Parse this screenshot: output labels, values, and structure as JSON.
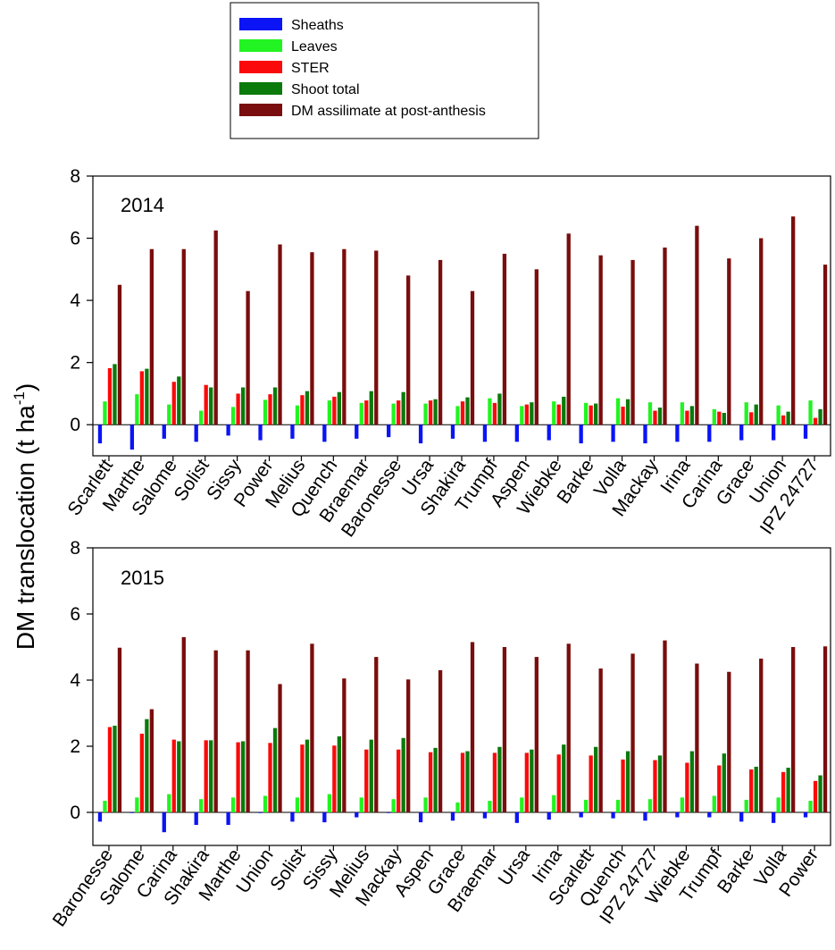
{
  "colors": {
    "sheaths": "#0a14f5",
    "leaves": "#22f322",
    "ster": "#fa0a0a",
    "shoot_total": "#0a7a0a",
    "dm_assimilate": "#7a0d0d"
  },
  "legend": {
    "placement": "top-center",
    "items": [
      {
        "key": "sheaths",
        "label": "Sheaths"
      },
      {
        "key": "leaves",
        "label": "Leaves"
      },
      {
        "key": "ster",
        "label": "STER"
      },
      {
        "key": "shoot_total",
        "label": "Shoot total"
      },
      {
        "key": "dm_assimilate",
        "label": "DM assilimate at post-anthesis"
      }
    ]
  },
  "ylabel_main": "DM translocation (t ha",
  "ylabel_sup": "-1",
  "ylabel_close": ")",
  "chart_data": [
    {
      "type": "bar",
      "title": "2014",
      "ylim": [
        -1,
        8
      ],
      "yticks": [
        0,
        2,
        4,
        6,
        8
      ],
      "series_names": [
        "Sheaths",
        "Leaves",
        "STER",
        "Shoot total",
        "DM assilimate at post-anthesis"
      ],
      "categories": [
        "Scarlett",
        "Marthe",
        "Salome",
        "Solist",
        "Sissy",
        "Power",
        "Melius",
        "Quench",
        "Braemar",
        "Baronesse",
        "Ursa",
        "Shakira",
        "Trumpf",
        "Aspen",
        "Wiebke",
        "Barke",
        "Volla",
        "Mackay",
        "Irina",
        "Carina",
        "Grace",
        "Union",
        "IPZ 24727"
      ],
      "series": [
        {
          "name": "Sheaths",
          "key": "sheaths",
          "values": [
            -0.6,
            -0.8,
            -0.45,
            -0.55,
            -0.35,
            -0.5,
            -0.45,
            -0.55,
            -0.45,
            -0.4,
            -0.6,
            -0.45,
            -0.55,
            -0.55,
            -0.5,
            -0.6,
            -0.55,
            -0.6,
            -0.55,
            -0.55,
            -0.5,
            -0.5,
            -0.45
          ]
        },
        {
          "name": "Leaves",
          "key": "leaves",
          "values": [
            0.75,
            0.98,
            0.65,
            0.45,
            0.57,
            0.8,
            0.62,
            0.78,
            0.7,
            0.68,
            0.68,
            0.6,
            0.85,
            0.6,
            0.75,
            0.7,
            0.85,
            0.72,
            0.72,
            0.5,
            0.72,
            0.62,
            0.78
          ]
        },
        {
          "name": "STER",
          "key": "ster",
          "values": [
            1.82,
            1.72,
            1.38,
            1.28,
            1.0,
            0.98,
            0.95,
            0.9,
            0.78,
            0.78,
            0.78,
            0.75,
            0.7,
            0.65,
            0.65,
            0.62,
            0.58,
            0.45,
            0.45,
            0.42,
            0.4,
            0.3,
            0.22
          ]
        },
        {
          "name": "Shoot total",
          "key": "shoot_total",
          "values": [
            1.95,
            1.8,
            1.55,
            1.2,
            1.2,
            1.2,
            1.08,
            1.05,
            1.08,
            1.05,
            0.82,
            0.88,
            1.0,
            0.72,
            0.9,
            0.68,
            0.82,
            0.55,
            0.6,
            0.38,
            0.65,
            0.42,
            0.5
          ]
        },
        {
          "name": "DM assilimate at post-anthesis",
          "key": "dm_assimilate",
          "values": [
            4.5,
            5.65,
            5.65,
            6.25,
            4.3,
            5.8,
            5.55,
            5.65,
            5.6,
            4.8,
            5.3,
            4.3,
            5.5,
            5.0,
            6.15,
            5.45,
            5.3,
            5.7,
            6.4,
            5.35,
            6.0,
            6.7,
            5.15
          ]
        }
      ]
    },
    {
      "type": "bar",
      "title": "2015",
      "ylim": [
        -1,
        8
      ],
      "yticks": [
        0,
        2,
        4,
        6,
        8
      ],
      "series_names": [
        "Sheaths",
        "Leaves",
        "STER",
        "Shoot total",
        "DM assilimate at post-anthesis"
      ],
      "categories": [
        "Baronesse",
        "Salome",
        "Carina",
        "Shakira",
        "Marthe",
        "Union",
        "Solist",
        "Sissy",
        "Melius",
        "Mackay",
        "Aspen",
        "Grace",
        "Braemar",
        "Ursa",
        "Irina",
        "Scarlett",
        "Quench",
        "IPZ 24727",
        "Wiebke",
        "Trumpf",
        "Barke",
        "Volla",
        "Power"
      ],
      "series": [
        {
          "name": "Sheaths",
          "key": "sheaths",
          "values": [
            -0.28,
            -0.02,
            -0.6,
            -0.38,
            -0.38,
            -0.02,
            -0.28,
            -0.3,
            -0.15,
            -0.02,
            -0.3,
            -0.25,
            -0.18,
            -0.32,
            -0.22,
            -0.15,
            -0.18,
            -0.25,
            -0.15,
            -0.15,
            -0.28,
            -0.32,
            -0.15
          ]
        },
        {
          "name": "Leaves",
          "key": "leaves",
          "values": [
            0.35,
            0.45,
            0.55,
            0.4,
            0.45,
            0.5,
            0.45,
            0.55,
            0.45,
            0.4,
            0.45,
            0.3,
            0.35,
            0.45,
            0.52,
            0.38,
            0.38,
            0.4,
            0.45,
            0.5,
            0.38,
            0.45,
            0.35
          ]
        },
        {
          "name": "STER",
          "key": "ster",
          "values": [
            2.58,
            2.38,
            2.2,
            2.18,
            2.12,
            2.1,
            2.05,
            2.02,
            1.9,
            1.9,
            1.82,
            1.8,
            1.8,
            1.8,
            1.75,
            1.72,
            1.6,
            1.58,
            1.5,
            1.42,
            1.3,
            1.22,
            0.95
          ]
        },
        {
          "name": "Shoot total",
          "key": "shoot_total",
          "values": [
            2.62,
            2.82,
            2.15,
            2.18,
            2.15,
            2.55,
            2.2,
            2.3,
            2.2,
            2.25,
            1.95,
            1.85,
            1.98,
            1.9,
            2.05,
            1.98,
            1.85,
            1.72,
            1.85,
            1.78,
            1.38,
            1.35,
            1.12
          ]
        },
        {
          "name": "DM assilimate at post-anthesis",
          "key": "dm_assimilate",
          "values": [
            4.98,
            3.12,
            5.3,
            4.9,
            4.9,
            3.88,
            5.1,
            4.05,
            4.7,
            4.02,
            4.3,
            5.15,
            5.0,
            4.7,
            5.1,
            4.35,
            4.8,
            5.2,
            4.5,
            4.25,
            4.65,
            5.0,
            5.02
          ]
        }
      ]
    }
  ]
}
